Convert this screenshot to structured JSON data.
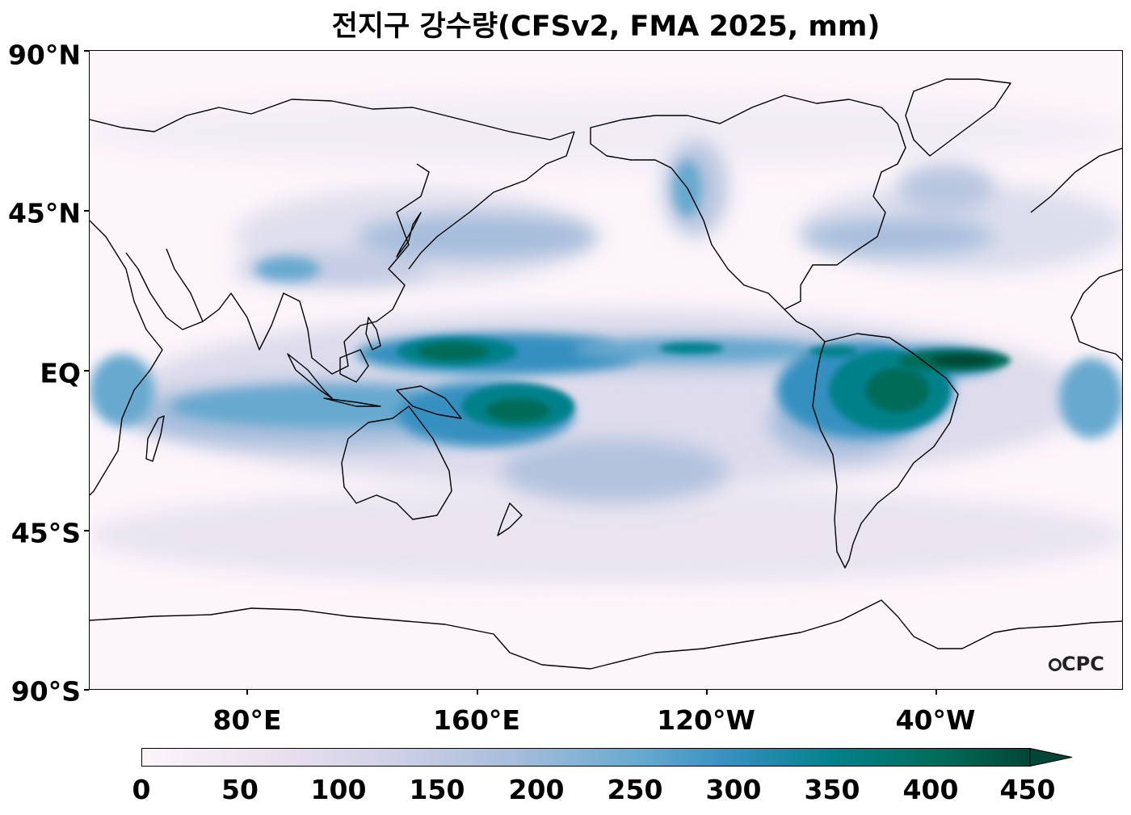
{
  "title": "전지구 강수량(CFSv2, FMA 2025, mm)",
  "lat_axis": {
    "labels": [
      "90°N",
      "45°N",
      "EQ",
      "45°S",
      "90°S"
    ],
    "values": [
      90,
      45,
      0,
      -45,
      -90
    ]
  },
  "lon_axis": {
    "labels": [
      "80°E",
      "160°E",
      "120°W",
      "40°W"
    ],
    "values": [
      80,
      160,
      240,
      320
    ]
  },
  "colorbar": {
    "labels": [
      "0",
      "50",
      "100",
      "150",
      "200",
      "250",
      "300",
      "350",
      "400",
      "450"
    ],
    "values": [
      0,
      50,
      100,
      150,
      200,
      250,
      300,
      350,
      400,
      450
    ],
    "extend": "max",
    "colormap": "PuBuGn",
    "colors": [
      "#fcf5fa",
      "#d9d8ea",
      "#a6bddb",
      "#67a9cf",
      "#3690c0",
      "#02818a",
      "#016c59",
      "#014636"
    ]
  },
  "logo": "CPC",
  "map": {
    "lon_range": [
      25,
      385
    ],
    "lat_range": [
      -90,
      90
    ],
    "projection": "PlateCarree"
  }
}
